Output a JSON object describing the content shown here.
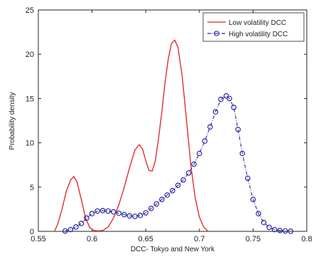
{
  "chart_data": {
    "type": "line",
    "title": "",
    "xlabel": "DCC- Tokyo and New York",
    "ylabel": "Probability density",
    "xlim": [
      0.55,
      0.8
    ],
    "ylim": [
      0,
      25
    ],
    "xticks": [
      0.55,
      0.6,
      0.65,
      0.7,
      0.75,
      0.8
    ],
    "xtick_labels": [
      "0.55",
      "0.6",
      "0.65",
      "0.7",
      "0.75",
      "0.8"
    ],
    "yticks": [
      0,
      5,
      10,
      15,
      20,
      25
    ],
    "ytick_labels": [
      "0",
      "5",
      "10",
      "15",
      "20",
      "25"
    ],
    "grid": false,
    "legend_position": "top-right",
    "series": [
      {
        "name": "Low volatility DCC",
        "color": "#e02020",
        "style": "solid line",
        "x": [
          0.565,
          0.568,
          0.572,
          0.576,
          0.58,
          0.583,
          0.586,
          0.59,
          0.594,
          0.598,
          0.602,
          0.606,
          0.61,
          0.615,
          0.62,
          0.625,
          0.63,
          0.635,
          0.64,
          0.644,
          0.647,
          0.65,
          0.653,
          0.656,
          0.659,
          0.662,
          0.665,
          0.668,
          0.671,
          0.674,
          0.677,
          0.68,
          0.684,
          0.688,
          0.692,
          0.696,
          0.7,
          0.704,
          0.708
        ],
        "y": [
          0.0,
          0.8,
          2.5,
          4.5,
          5.8,
          6.2,
          5.6,
          3.6,
          1.5,
          0.4,
          0.1,
          0.05,
          0.1,
          0.5,
          1.5,
          3.0,
          5.0,
          7.2,
          9.2,
          9.8,
          9.3,
          8.0,
          6.9,
          6.8,
          8.0,
          10.5,
          13.5,
          16.8,
          19.5,
          21.2,
          21.6,
          20.8,
          17.5,
          12.5,
          7.5,
          3.8,
          1.6,
          0.5,
          0.0
        ]
      },
      {
        "name": "High volatility DCC",
        "color": "#2a2aa0",
        "style": "dash-dot line with circle markers",
        "x": [
          0.575,
          0.58,
          0.585,
          0.59,
          0.595,
          0.6,
          0.605,
          0.61,
          0.615,
          0.62,
          0.625,
          0.63,
          0.635,
          0.64,
          0.645,
          0.65,
          0.655,
          0.66,
          0.665,
          0.67,
          0.675,
          0.68,
          0.685,
          0.69,
          0.695,
          0.7,
          0.705,
          0.71,
          0.715,
          0.72,
          0.725,
          0.728,
          0.732,
          0.736,
          0.74,
          0.745,
          0.75,
          0.755,
          0.76,
          0.765,
          0.77,
          0.775,
          0.78,
          0.785
        ],
        "y": [
          0.05,
          0.2,
          0.5,
          0.9,
          1.5,
          2.0,
          2.3,
          2.35,
          2.3,
          2.2,
          2.05,
          1.9,
          1.75,
          1.7,
          1.8,
          2.1,
          2.6,
          3.1,
          3.6,
          4.1,
          4.6,
          5.2,
          5.8,
          6.6,
          7.6,
          8.8,
          10.2,
          11.8,
          13.5,
          14.9,
          15.3,
          15.0,
          14.0,
          11.5,
          8.8,
          6.0,
          3.6,
          2.0,
          1.0,
          0.45,
          0.2,
          0.1,
          0.05,
          0.02
        ]
      }
    ]
  }
}
